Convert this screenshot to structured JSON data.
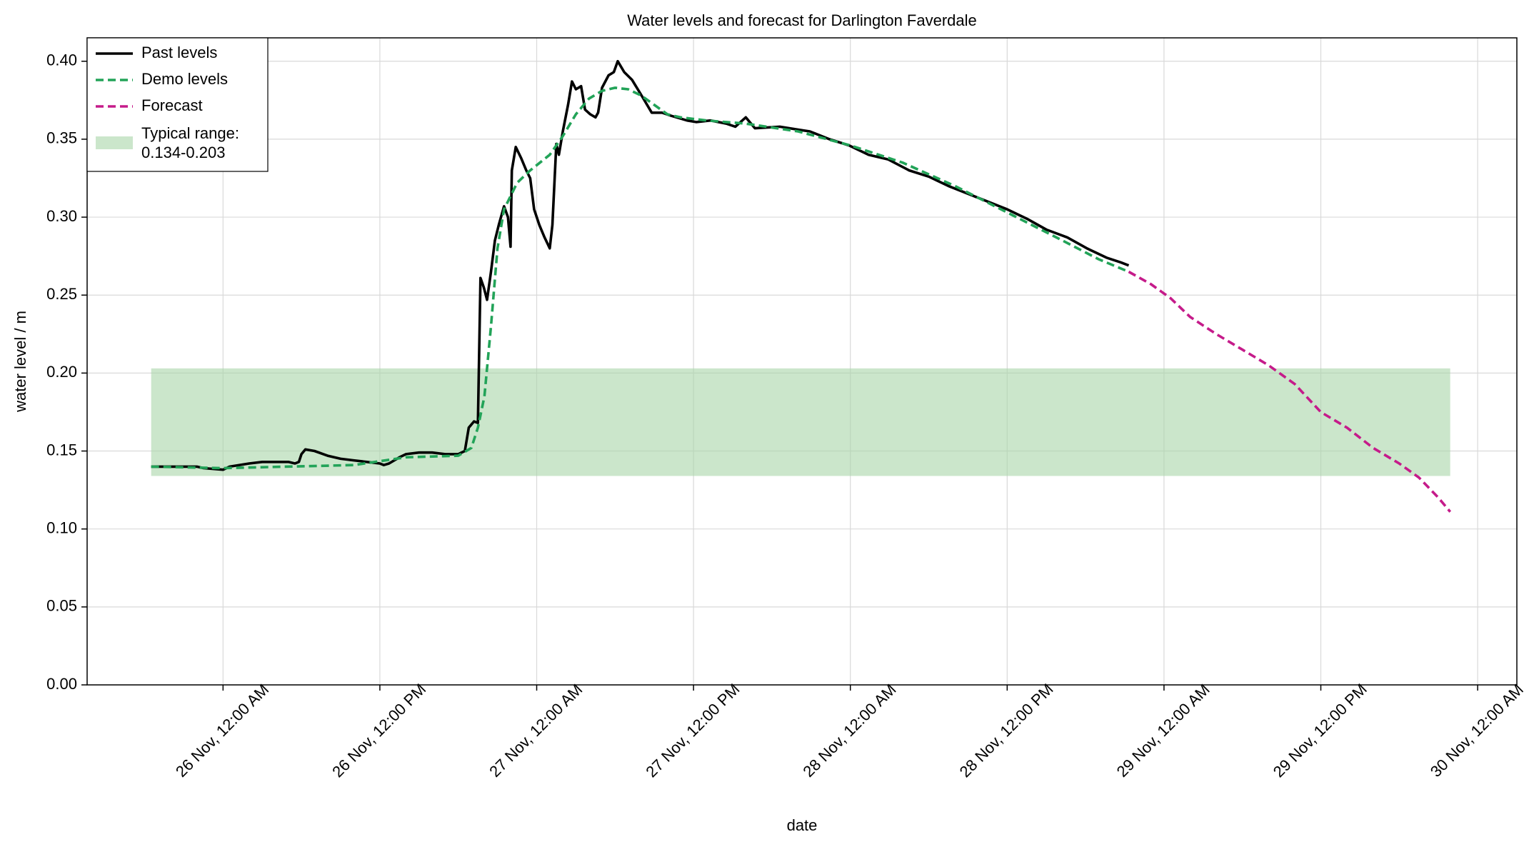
{
  "chart_data": {
    "type": "line",
    "title": "Water levels and forecast for Darlington Faverdale",
    "xlabel": "date",
    "ylabel": "water level / m",
    "xlim": [
      -10.4,
      99
    ],
    "ylim": [
      0,
      0.415
    ],
    "grid": true,
    "legend": "upper left",
    "xticks": [
      {
        "value": 0,
        "label": "26 Nov, 12:00 AM"
      },
      {
        "value": 12,
        "label": "26 Nov, 12:00 PM"
      },
      {
        "value": 24,
        "label": "27 Nov, 12:00 AM"
      },
      {
        "value": 36,
        "label": "27 Nov, 12:00 PM"
      },
      {
        "value": 48,
        "label": "28 Nov, 12:00 AM"
      },
      {
        "value": 60,
        "label": "28 Nov, 12:00 PM"
      },
      {
        "value": 72,
        "label": "29 Nov, 12:00 AM"
      },
      {
        "value": 84,
        "label": "29 Nov, 12:00 PM"
      },
      {
        "value": 96,
        "label": "30 Nov, 12:00 AM"
      }
    ],
    "yticks": [
      {
        "value": 0,
        "label": "0.00"
      },
      {
        "value": 0.05,
        "label": "0.05"
      },
      {
        "value": 0.1,
        "label": "0.10"
      },
      {
        "value": 0.15,
        "label": "0.15"
      },
      {
        "value": 0.2,
        "label": "0.20"
      },
      {
        "value": 0.25,
        "label": "0.25"
      },
      {
        "value": 0.3,
        "label": "0.30"
      },
      {
        "value": 0.35,
        "label": "0.35"
      },
      {
        "value": 0.4,
        "label": "0.40"
      }
    ],
    "band": {
      "label": [
        "Typical range:",
        "0.134-0.203"
      ],
      "range": [
        0.134,
        0.203
      ],
      "x": [
        -5.5,
        93.9
      ],
      "color": "#a9d5a9"
    },
    "series": [
      {
        "name": "Past levels",
        "color": "#000000",
        "dash": false,
        "x": [
          -5.5,
          -2,
          -1.5,
          0,
          0.5,
          2,
          3,
          5,
          5.5,
          5.8,
          6,
          6.3,
          7,
          8,
          9,
          10,
          11,
          12,
          12.3,
          12.7,
          13.5,
          14,
          15,
          16,
          17,
          18,
          18.5,
          18.8,
          19.2,
          19.5,
          19.7,
          19.95,
          20.2,
          20.5,
          20.8,
          21.1,
          21.5,
          21.8,
          22.0,
          22.1,
          22.4,
          22.8,
          23.2,
          23.5,
          23.8,
          24.2,
          24.6,
          25.0,
          25.2,
          25.5,
          25.7,
          26.0,
          26.4,
          26.7,
          27.0,
          27.4,
          27.7,
          28.1,
          28.5,
          28.7,
          29.0,
          29.5,
          29.9,
          30.2,
          30.7,
          31.3,
          32.1,
          32.8,
          33.6,
          34.3,
          35.5,
          36.2,
          37.3,
          38.5,
          39.2,
          40.0,
          40.7,
          42.6,
          44.1,
          44.9,
          46.4,
          47.9,
          49.4,
          50.9,
          52.5,
          54.0,
          55.5,
          57.0,
          58.5,
          60.0,
          61.5,
          63.0,
          64.6,
          66.1,
          67.6,
          68.7,
          69.3
        ],
        "values": [
          0.14,
          0.14,
          0.139,
          0.138,
          0.14,
          0.142,
          0.143,
          0.143,
          0.142,
          0.143,
          0.148,
          0.151,
          0.15,
          0.147,
          0.145,
          0.144,
          0.143,
          0.142,
          0.141,
          0.142,
          0.146,
          0.148,
          0.149,
          0.149,
          0.148,
          0.148,
          0.15,
          0.165,
          0.169,
          0.168,
          0.261,
          0.255,
          0.247,
          0.265,
          0.285,
          0.295,
          0.307,
          0.3,
          0.281,
          0.33,
          0.345,
          0.338,
          0.33,
          0.325,
          0.305,
          0.295,
          0.287,
          0.28,
          0.295,
          0.347,
          0.34,
          0.355,
          0.372,
          0.387,
          0.382,
          0.384,
          0.369,
          0.366,
          0.364,
          0.367,
          0.383,
          0.391,
          0.393,
          0.4,
          0.393,
          0.388,
          0.377,
          0.367,
          0.367,
          0.365,
          0.362,
          0.361,
          0.362,
          0.36,
          0.358,
          0.364,
          0.357,
          0.358,
          0.356,
          0.355,
          0.35,
          0.346,
          0.34,
          0.337,
          0.33,
          0.326,
          0.32,
          0.315,
          0.31,
          0.305,
          0.299,
          0.292,
          0.287,
          0.28,
          0.274,
          0.271,
          0.269
        ]
      },
      {
        "name": "Demo levels",
        "color": "#22a358",
        "dash": true,
        "x": [
          -5.5,
          0,
          10,
          14,
          18,
          19,
          19.5,
          20,
          20.5,
          21,
          21.5,
          22.5,
          23.5,
          25,
          26,
          27,
          28,
          29,
          30,
          31,
          32,
          33,
          34,
          35,
          37,
          40,
          44,
          48,
          52,
          56,
          60,
          64,
          67,
          69.3
        ],
        "values": [
          0.14,
          0.139,
          0.141,
          0.146,
          0.147,
          0.152,
          0.165,
          0.185,
          0.23,
          0.28,
          0.305,
          0.322,
          0.33,
          0.34,
          0.352,
          0.366,
          0.376,
          0.381,
          0.383,
          0.382,
          0.378,
          0.372,
          0.366,
          0.364,
          0.362,
          0.36,
          0.355,
          0.346,
          0.335,
          0.32,
          0.303,
          0.286,
          0.273,
          0.265
        ]
      },
      {
        "name": "Forecast",
        "color": "#c51b8a",
        "dash": true,
        "x": [
          69.3,
          71,
          72.5,
          74,
          76,
          78,
          80,
          82,
          84,
          86,
          88,
          90,
          91.5,
          93,
          93.9
        ],
        "values": [
          0.265,
          0.257,
          0.248,
          0.236,
          0.225,
          0.215,
          0.205,
          0.193,
          0.175,
          0.165,
          0.152,
          0.142,
          0.133,
          0.12,
          0.111
        ]
      }
    ]
  }
}
